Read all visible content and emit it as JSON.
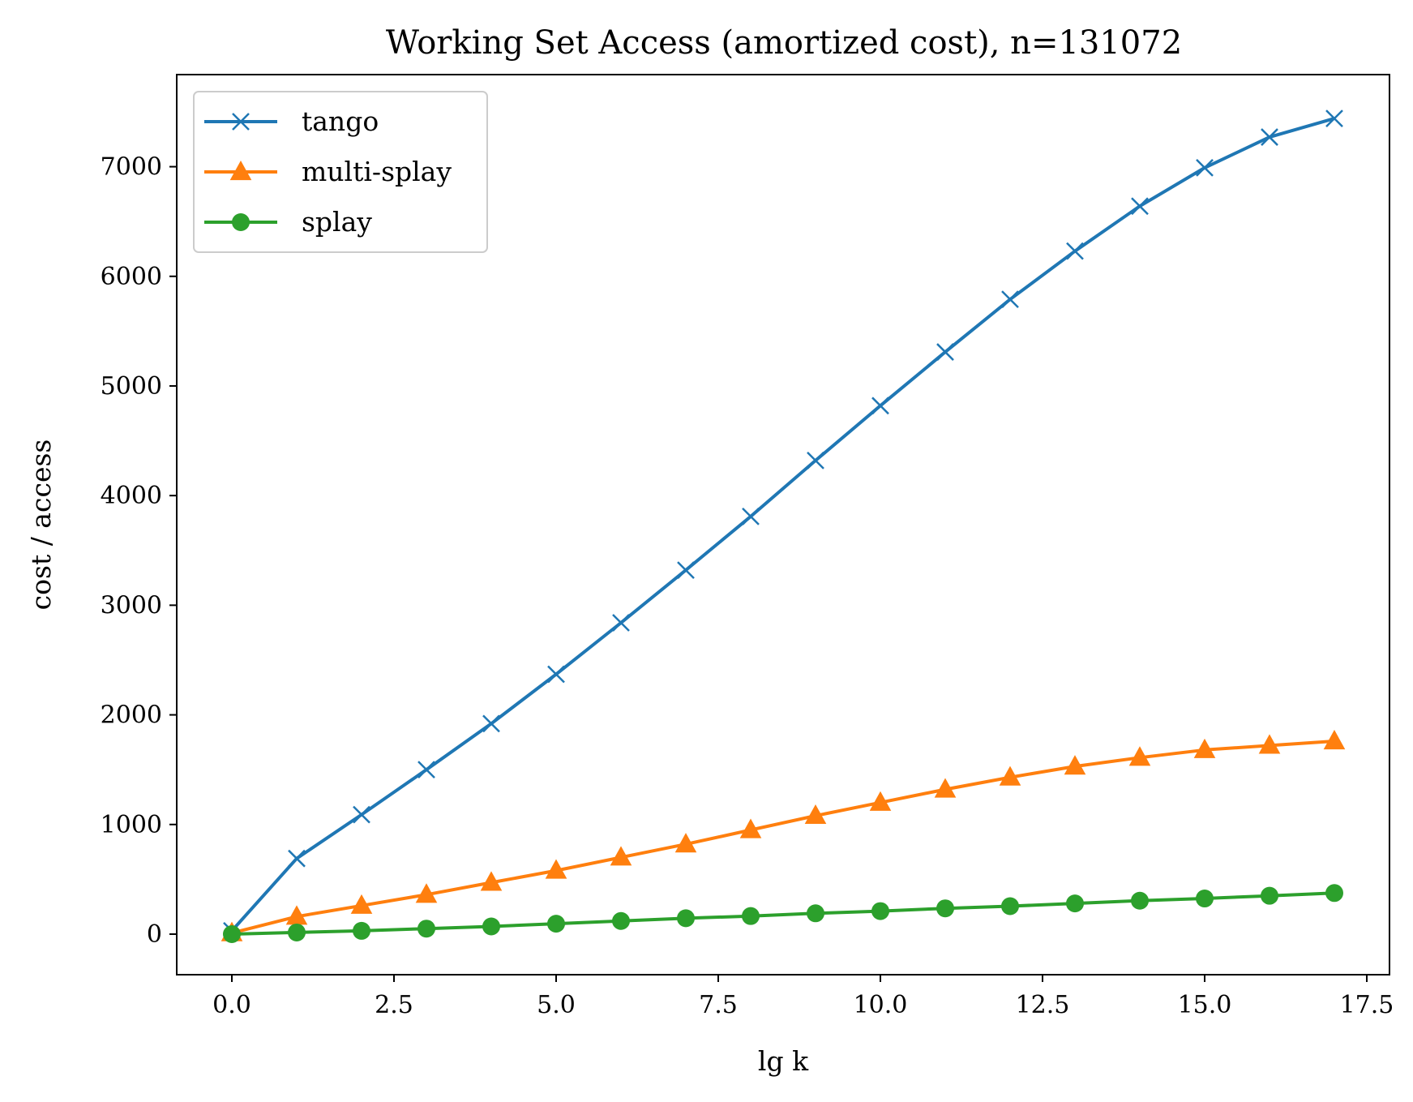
{
  "chart_data": {
    "type": "line",
    "title": "Working Set Access (amortized cost), n=131072",
    "xlabel": "lg k",
    "ylabel": "cost / access",
    "xlim": [
      -0.85,
      17.85
    ],
    "ylim": [
      -370,
      7840
    ],
    "xticks": [
      0.0,
      2.5,
      5.0,
      7.5,
      10.0,
      12.5,
      15.0,
      17.5
    ],
    "xtick_labels": [
      "0.0",
      "2.5",
      "5.0",
      "7.5",
      "10.0",
      "12.5",
      "15.0",
      "17.5"
    ],
    "yticks": [
      0,
      1000,
      2000,
      3000,
      4000,
      5000,
      6000,
      7000
    ],
    "ytick_labels": [
      "0",
      "1000",
      "2000",
      "3000",
      "4000",
      "5000",
      "6000",
      "7000"
    ],
    "grid": false,
    "legend_position": "upper-left",
    "x": [
      0,
      1,
      2,
      3,
      4,
      5,
      6,
      7,
      8,
      9,
      10,
      11,
      12,
      13,
      14,
      15,
      16,
      17
    ],
    "series": [
      {
        "name": "tango",
        "color": "#1f77b4",
        "marker": "x",
        "values": [
          30,
          690,
          1090,
          1500,
          1920,
          2370,
          2840,
          3320,
          3810,
          4320,
          4820,
          5310,
          5790,
          6230,
          6640,
          6990,
          7270,
          7440
        ]
      },
      {
        "name": "multi-splay",
        "color": "#ff7f0e",
        "marker": "triangle",
        "values": [
          10,
          160,
          260,
          360,
          470,
          580,
          700,
          820,
          950,
          1080,
          1200,
          1320,
          1430,
          1530,
          1610,
          1680,
          1720,
          1760
        ]
      },
      {
        "name": "splay",
        "color": "#2ca02c",
        "marker": "circle",
        "values": [
          0,
          15,
          30,
          50,
          70,
          95,
          120,
          145,
          165,
          190,
          210,
          235,
          255,
          280,
          305,
          325,
          350,
          375
        ]
      }
    ]
  }
}
